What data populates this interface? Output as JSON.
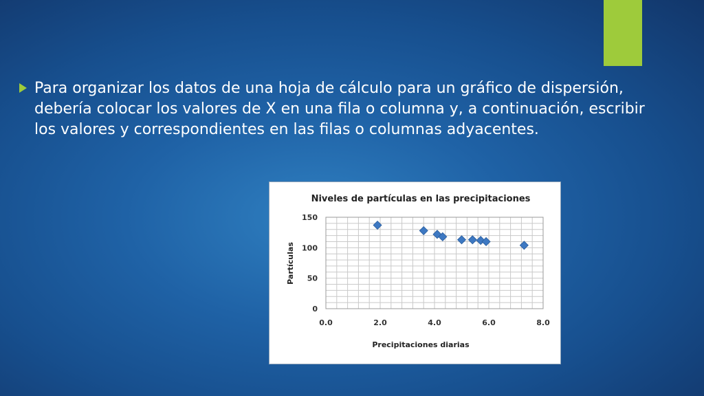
{
  "slide": {
    "paragraph": "Para organizar los datos de una hoja de cálculo para un gráfico de dispersión, debería colocar los valores de X en una fila o columna y, a continuación, escribir los valores y correspondientes en las filas o columnas adyacentes.",
    "colors": {
      "accent": "#9ecb3b",
      "text": "#ffffff",
      "marker": "#3d78c2"
    }
  },
  "chart_data": {
    "type": "scatter",
    "title": "Niveles de partículas en las precipitaciones",
    "xlabel": "Precipitaciones diarias",
    "ylabel": "Partículas",
    "xlim": [
      0,
      8
    ],
    "ylim": [
      0,
      150
    ],
    "xticks": [
      "0.0",
      "2.0",
      "4.0",
      "6.0",
      "8.0"
    ],
    "yticks": [
      "0",
      "50",
      "100",
      "150"
    ],
    "grid": true,
    "legend": "none",
    "points": [
      {
        "x": 1.9,
        "y": 137
      },
      {
        "x": 3.6,
        "y": 128
      },
      {
        "x": 4.1,
        "y": 122
      },
      {
        "x": 4.3,
        "y": 118
      },
      {
        "x": 5.0,
        "y": 113
      },
      {
        "x": 5.4,
        "y": 113
      },
      {
        "x": 5.7,
        "y": 112
      },
      {
        "x": 5.9,
        "y": 110
      },
      {
        "x": 7.3,
        "y": 104
      }
    ]
  }
}
